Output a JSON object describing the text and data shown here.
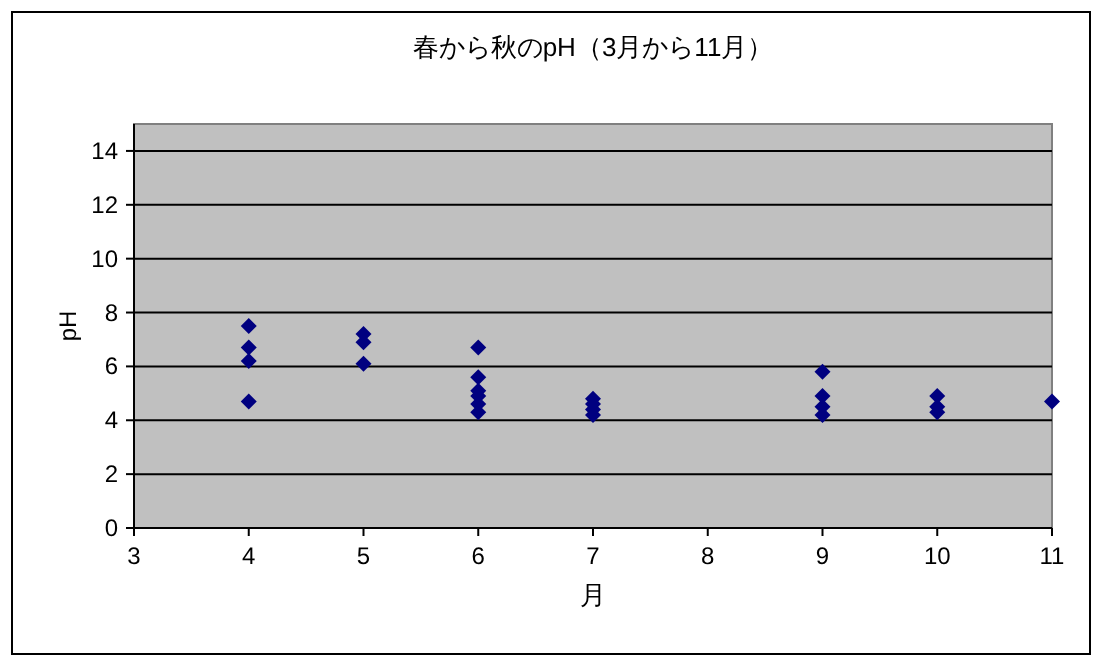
{
  "chart_data": {
    "type": "scatter",
    "title": "春から秋のpH（3月から11月）",
    "xlabel": "月",
    "ylabel": "pH",
    "x": [
      4,
      4,
      4,
      4,
      5,
      5,
      5,
      6,
      6,
      6,
      6,
      6,
      6,
      7,
      7,
      7,
      7,
      9,
      9,
      9,
      9,
      10,
      10,
      10,
      11
    ],
    "series": [
      {
        "color": "#000080",
        "values": [
          7.5,
          6.7,
          6.2,
          4.7,
          7.2,
          6.9,
          6.1,
          6.7,
          5.6,
          5.1,
          4.9,
          4.6,
          4.3,
          4.8,
          4.6,
          4.4,
          4.2,
          5.8,
          4.9,
          4.5,
          4.2,
          4.9,
          4.5,
          4.3,
          4.7
        ]
      }
    ],
    "xlim": [
      3,
      11
    ],
    "xticks": [
      3,
      4,
      5,
      6,
      7,
      8,
      9,
      10,
      11
    ],
    "ylim": [
      0,
      15
    ],
    "yticks": [
      0,
      2,
      4,
      6,
      8,
      10,
      12,
      14
    ],
    "grid": "y",
    "marker": "diamond"
  }
}
